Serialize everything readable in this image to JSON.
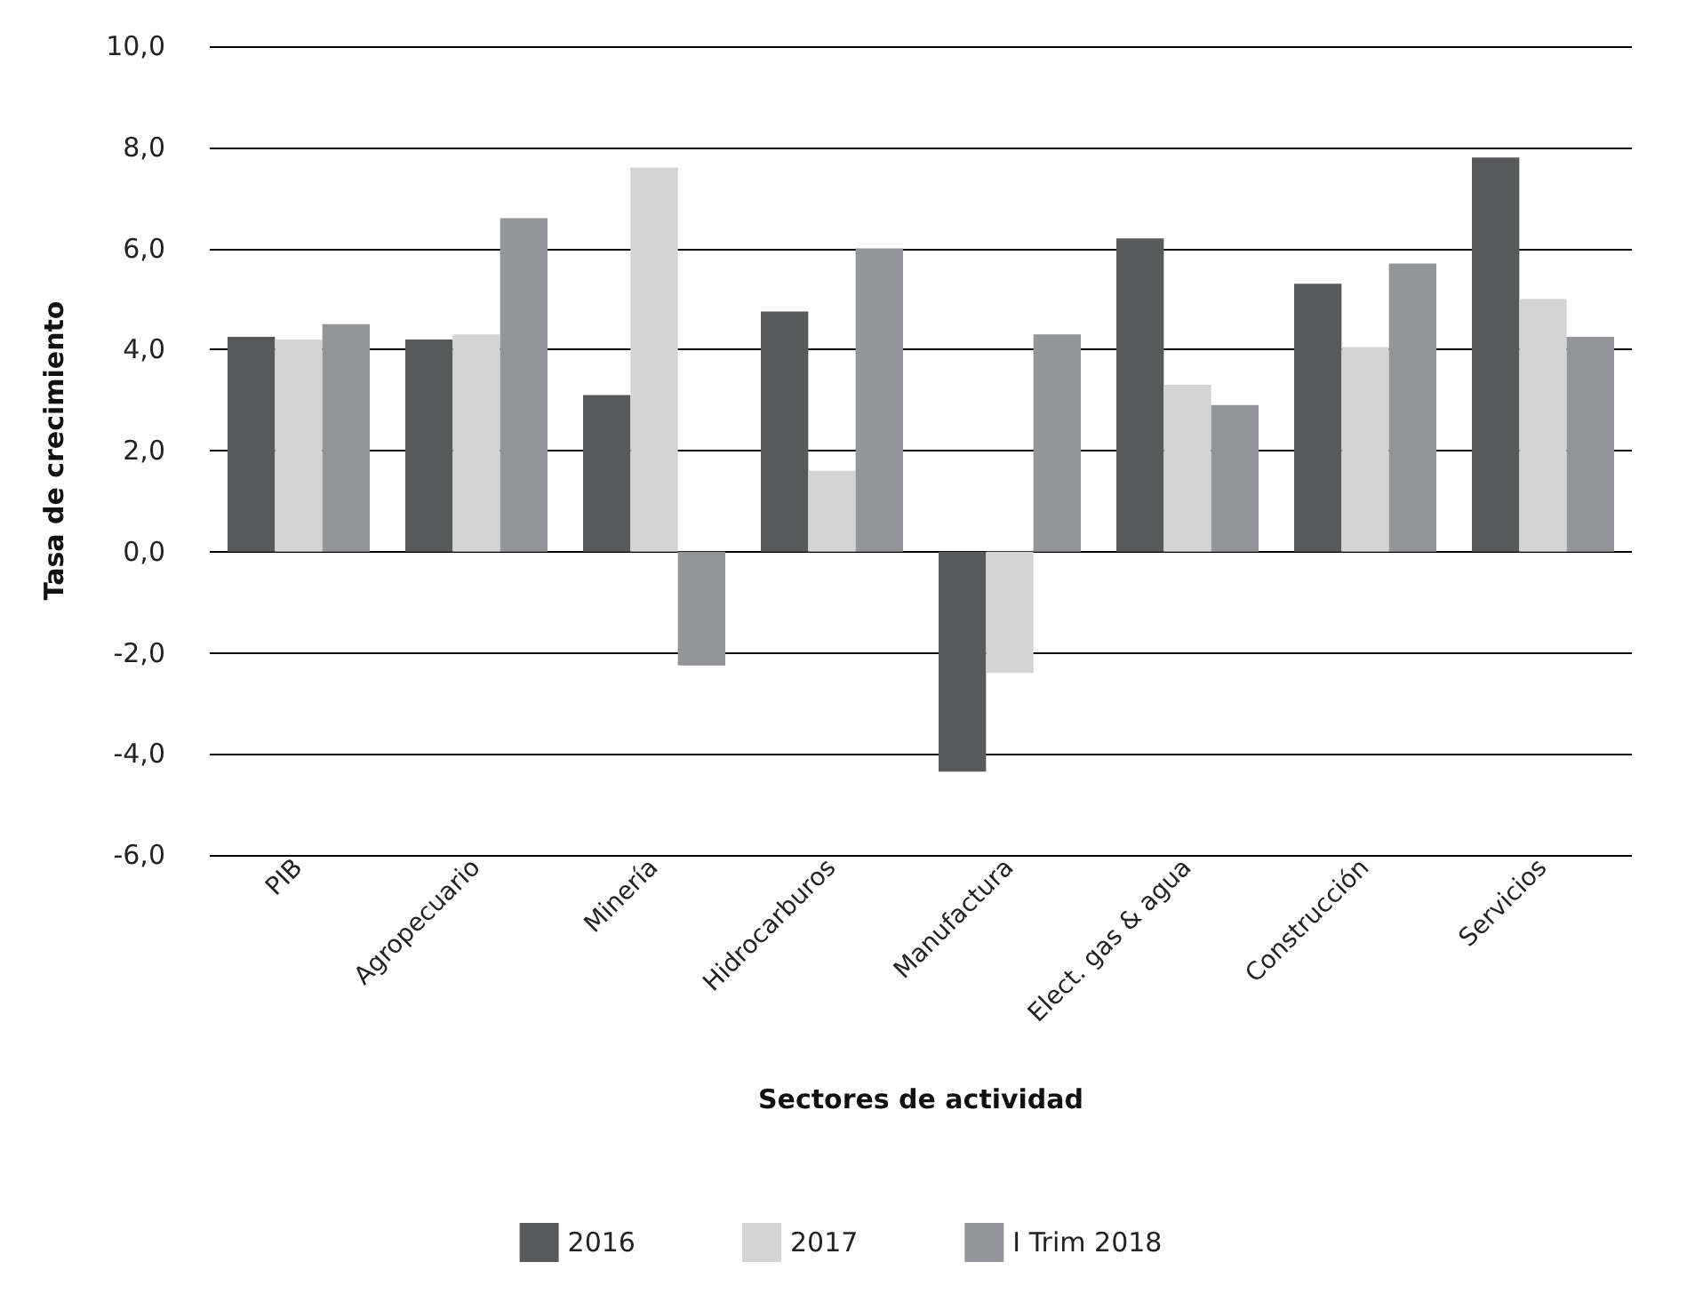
{
  "chart_data": {
    "type": "bar",
    "xlabel": "Sectores de actividad",
    "ylabel": "Tasa de crecimiento",
    "categories": [
      "PIB",
      "Agropecuario",
      "Minería",
      "Hidrocarburos",
      "Manufactura",
      "Elect. gas & agua",
      "Construcción",
      "Servicios"
    ],
    "series": [
      {
        "name": "2016",
        "color": "#58595b",
        "values": [
          4.25,
          4.2,
          3.1,
          4.75,
          -4.35,
          6.2,
          5.3,
          7.8
        ]
      },
      {
        "name": "2017",
        "color": "#d4d4d4",
        "values": [
          4.2,
          4.3,
          7.6,
          1.6,
          -2.4,
          3.3,
          4.05,
          5.0
        ]
      },
      {
        "name": "I Trim 2018",
        "color": "#939598",
        "values": [
          4.5,
          6.6,
          -2.25,
          6.0,
          4.3,
          2.9,
          5.7,
          4.25
        ]
      }
    ],
    "ylim": [
      -6,
      10
    ],
    "yticks": [
      {
        "value": -6,
        "label": "-6,0"
      },
      {
        "value": -4,
        "label": "-4,0"
      },
      {
        "value": -2,
        "label": "-2,0"
      },
      {
        "value": 0,
        "label": "0,0"
      },
      {
        "value": 2,
        "label": "2,0"
      },
      {
        "value": 4,
        "label": "4,0"
      },
      {
        "value": 6,
        "label": "6,0"
      },
      {
        "value": 8,
        "label": "8,0"
      },
      {
        "value": 10,
        "label": "10,0"
      }
    ],
    "grid": "y",
    "legend": "bottom"
  }
}
